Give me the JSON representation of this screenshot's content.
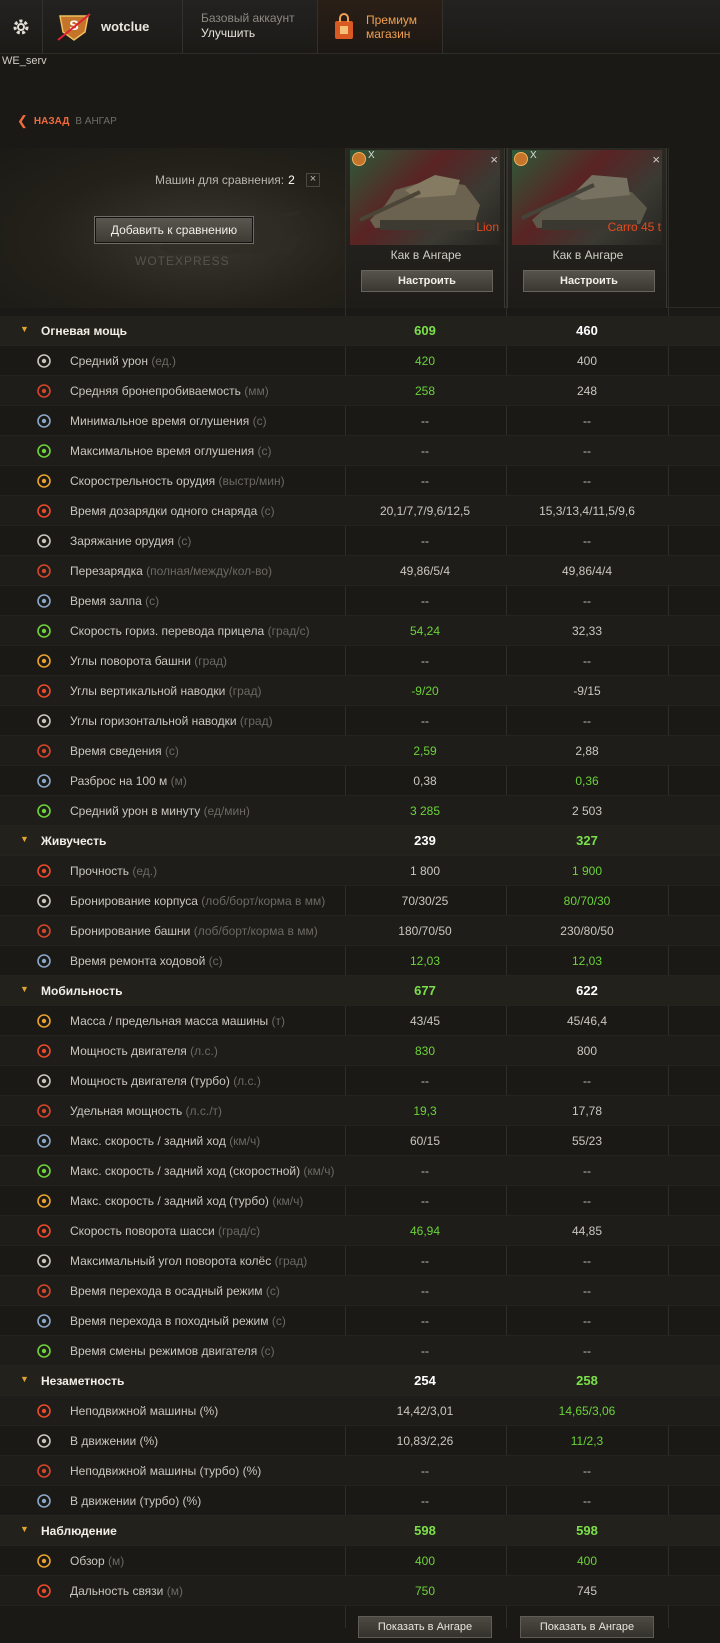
{
  "topbar": {
    "username": "wotclue",
    "account_type": "Базовый аккаунт",
    "upgrade": "Улучшить",
    "premium_line1": "Премиум",
    "premium_line2": "магазин"
  },
  "server": "WE_serv",
  "nav": {
    "back": "НАЗАД",
    "crumb": "В АНГАР"
  },
  "compare": {
    "count_label": "Машин для сравнения:",
    "count": "2",
    "close": "×",
    "add_button": "Добавить к сравнению",
    "watermark": "WOTEXPRESS"
  },
  "tanks": [
    {
      "name": "Lion",
      "badge": "X",
      "mode": "Как в Ангаре",
      "configure": "Настроить",
      "close": "×"
    },
    {
      "name": "Carro 45 t",
      "badge": "X",
      "mode": "Как в Ангаре",
      "configure": "Настроить",
      "close": "×"
    }
  ],
  "rows": [
    {
      "type": "cat",
      "label": "Огневая мощь",
      "v1": "609",
      "v1g": true,
      "v2": "460"
    },
    {
      "type": "stat",
      "icon": "damage-icon",
      "label": "Средний урон",
      "unit": "(ед.)",
      "v1": "420",
      "v1g": true,
      "v2": "400"
    },
    {
      "type": "stat",
      "icon": "penetration-icon",
      "label": "Средняя бронепробиваемость",
      "unit": "(мм)",
      "v1": "258",
      "v1g": true,
      "v2": "248"
    },
    {
      "type": "stat",
      "icon": "stun-min-icon",
      "label": "Минимальное время оглушения",
      "unit": "(с)",
      "v1": "--",
      "v2": "--"
    },
    {
      "type": "stat",
      "icon": "stun-max-icon",
      "label": "Максимальное время оглушения",
      "unit": "(с)",
      "v1": "--",
      "v2": "--"
    },
    {
      "type": "stat",
      "icon": "rate-of-fire-icon",
      "label": "Скорострельность орудия",
      "unit": "(выстр/мин)",
      "v1": "--",
      "v2": "--"
    },
    {
      "type": "stat",
      "icon": "shell-reload-icon",
      "label": "Время дозарядки одного снаряда",
      "unit": "(с)",
      "v1": "20,1/7,7/9,6/12,5",
      "v2": "15,3/13,4/11,5/9,6"
    },
    {
      "type": "stat",
      "icon": "loading-icon",
      "label": "Заряжание орудия",
      "unit": "(с)",
      "v1": "--",
      "v2": "--"
    },
    {
      "type": "stat",
      "icon": "magazine-reload-icon",
      "label": "Перезарядка",
      "unit": "(полная/между/кол-во)",
      "v1": "49,86/5/4",
      "v2": "49,86/4/4"
    },
    {
      "type": "stat",
      "icon": "salvo-icon",
      "label": "Время залпа",
      "unit": "(с)",
      "v1": "--",
      "v2": "--"
    },
    {
      "type": "stat",
      "icon": "traverse-speed-icon",
      "label": "Скорость гориз. перевода прицела",
      "unit": "(град/с)",
      "v1": "54,24",
      "v1g": true,
      "v2": "32,33"
    },
    {
      "type": "stat",
      "icon": "turret-angle-icon",
      "label": "Углы поворота башни",
      "unit": "(град)",
      "v1": "--",
      "v2": "--"
    },
    {
      "type": "stat",
      "icon": "elevation-icon",
      "label": "Углы вертикальной наводки",
      "unit": "(град)",
      "v1": "-9/20",
      "v1g": true,
      "v2": "-9/15"
    },
    {
      "type": "stat",
      "icon": "horizontal-angle-icon",
      "label": "Углы горизонтальной наводки",
      "unit": "(град)",
      "v1": "--",
      "v2": "--"
    },
    {
      "type": "stat",
      "icon": "aim-time-icon",
      "label": "Время сведения",
      "unit": "(с)",
      "v1": "2,59",
      "v1g": true,
      "v2": "2,88"
    },
    {
      "type": "stat",
      "icon": "dispersion-icon",
      "label": "Разброс на 100 м",
      "unit": "(м)",
      "v1": "0,38",
      "v2": "0,36",
      "v2g": true
    },
    {
      "type": "stat",
      "icon": "dpm-icon",
      "label": "Средний урон в минуту",
      "unit": "(ед/мин)",
      "v1": "3 285",
      "v1g": true,
      "v2": "2 503"
    },
    {
      "type": "cat",
      "label": "Живучесть",
      "v1": "239",
      "v2": "327",
      "v2g": true
    },
    {
      "type": "stat",
      "icon": "hitpoints-icon",
      "label": "Прочность",
      "unit": "(ед.)",
      "v1": "1 800",
      "v2": "1 900",
      "v2g": true
    },
    {
      "type": "stat",
      "icon": "hull-armor-icon",
      "label": "Бронирование корпуса",
      "unit": "(лоб/борт/корма в мм)",
      "v1": "70/30/25",
      "v2": "80/70/30",
      "v2g": true
    },
    {
      "type": "stat",
      "icon": "turret-armor-icon",
      "label": "Бронирование башни",
      "unit": "(лоб/борт/корма в мм)",
      "v1": "180/70/50",
      "v2": "230/80/50"
    },
    {
      "type": "stat",
      "icon": "repair-icon",
      "label": "Время ремонта ходовой",
      "unit": "(с)",
      "v1": "12,03",
      "v1g": true,
      "v2": "12,03",
      "v2g": true
    },
    {
      "type": "cat",
      "label": "Мобильность",
      "v1": "677",
      "v1g": true,
      "v2": "622"
    },
    {
      "type": "stat",
      "icon": "weight-icon",
      "label": "Масса / предельная масса машины",
      "unit": "(т)",
      "v1": "43/45",
      "v2": "45/46,4"
    },
    {
      "type": "stat",
      "icon": "engine-icon",
      "label": "Мощность двигателя",
      "unit": "(л.с.)",
      "v1": "830",
      "v1g": true,
      "v2": "800"
    },
    {
      "type": "stat",
      "icon": "engine-turbo-icon",
      "label": "Мощность двигателя (турбо)",
      "unit": "(л.с.)",
      "v1": "--",
      "v2": "--"
    },
    {
      "type": "stat",
      "icon": "power-ratio-icon",
      "label": "Удельная мощность",
      "unit": "(л.с./т)",
      "v1": "19,3",
      "v1g": true,
      "v2": "17,78"
    },
    {
      "type": "stat",
      "icon": "speed-icon",
      "label": "Макс. скорость / задний ход",
      "unit": "(км/ч)",
      "v1": "60/15",
      "v2": "55/23"
    },
    {
      "type": "stat",
      "icon": "speed-fast-icon",
      "label": "Макс. скорость / задний ход (скоростной)",
      "unit": "(км/ч)",
      "v1": "--",
      "v2": "--"
    },
    {
      "type": "stat",
      "icon": "speed-turbo-icon",
      "label": "Макс. скорость / задний ход (турбо)",
      "unit": "(км/ч)",
      "v1": "--",
      "v2": "--"
    },
    {
      "type": "stat",
      "icon": "hull-traverse-icon",
      "label": "Скорость поворота шасси",
      "unit": "(град/с)",
      "v1": "46,94",
      "v1g": true,
      "v2": "44,85"
    },
    {
      "type": "stat",
      "icon": "wheel-angle-icon",
      "label": "Максимальный угол поворота колёс",
      "unit": "(град)",
      "v1": "--",
      "v2": "--"
    },
    {
      "type": "stat",
      "icon": "siege-mode-icon",
      "label": "Время перехода в осадный режим ",
      "unit": "(с)",
      "v1": "--",
      "v2": "--"
    },
    {
      "type": "stat",
      "icon": "travel-mode-icon",
      "label": "Время перехода в походный режим ",
      "unit": "(с)",
      "v1": "--",
      "v2": "--"
    },
    {
      "type": "stat",
      "icon": "engine-mode-icon",
      "label": "Время смены режимов двигателя",
      "unit": "(с)",
      "v1": "--",
      "v2": "--"
    },
    {
      "type": "cat",
      "label": "Незаметность",
      "v1": "254",
      "v2": "258",
      "v2g": true
    },
    {
      "type": "stat",
      "icon": "camo-still-icon",
      "label": "Неподвижной машины (%)",
      "unit": "",
      "v1": "14,42/3,01",
      "v2": "14,65/3,06",
      "v2g": true
    },
    {
      "type": "stat",
      "icon": "camo-moving-icon",
      "label": "В движении (%)",
      "unit": "",
      "v1": "10,83/2,26",
      "v2": "11/2,3",
      "v2g": true
    },
    {
      "type": "stat",
      "icon": "camo-still-turbo-icon",
      "label": "Неподвижной машины (турбо) (%)",
      "unit": "",
      "v1": "--",
      "v2": "--"
    },
    {
      "type": "stat",
      "icon": "camo-moving-turbo-icon",
      "label": "В движении (турбо) (%)",
      "unit": "",
      "v1": "--",
      "v2": "--"
    },
    {
      "type": "cat",
      "label": "Наблюдение",
      "v1": "598",
      "v1g": true,
      "v2": "598",
      "v2g": true
    },
    {
      "type": "stat",
      "icon": "view-range-icon",
      "label": "Обзор",
      "unit": "(м)",
      "v1": "400",
      "v1g": true,
      "v2": "400",
      "v2g": true
    },
    {
      "type": "stat",
      "icon": "radio-range-icon",
      "label": "Дальность связи",
      "unit": "(м)",
      "v1": "750",
      "v1g": true,
      "v2": "745"
    }
  ],
  "footer": {
    "show_in_hangar": "Показать в Ангаре"
  },
  "colors": {
    "accent_green": "#6cd23a",
    "accent_orange": "#f06a3c",
    "tank_name_red": "#e8491d",
    "category_chevron": "#e0a230"
  }
}
